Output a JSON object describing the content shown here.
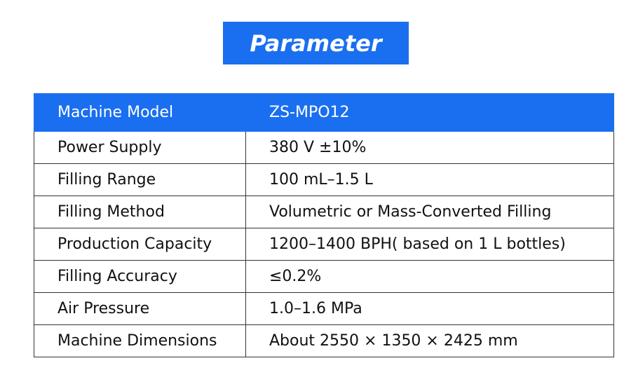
{
  "header": {
    "title": "Parameter"
  },
  "table": {
    "rows": [
      [
        "Machine Model",
        "ZS-MPO12"
      ],
      [
        "Power Supply",
        "380 V ±10%"
      ],
      [
        "Filling Range",
        "100 mL–1.5 L"
      ],
      [
        "Filling Method",
        "Volumetric or Mass-Converted Filling"
      ],
      [
        "Production Capacity",
        "1200–1400 BPH( based on 1 L bottles)"
      ],
      [
        "Filling Accuracy",
        "≤0.2%"
      ],
      [
        "Air Pressure",
        "1.0–1.6 MPa"
      ],
      [
        "Machine Dimensions",
        "About 2550 × 1350 × 2425 mm"
      ]
    ]
  }
}
